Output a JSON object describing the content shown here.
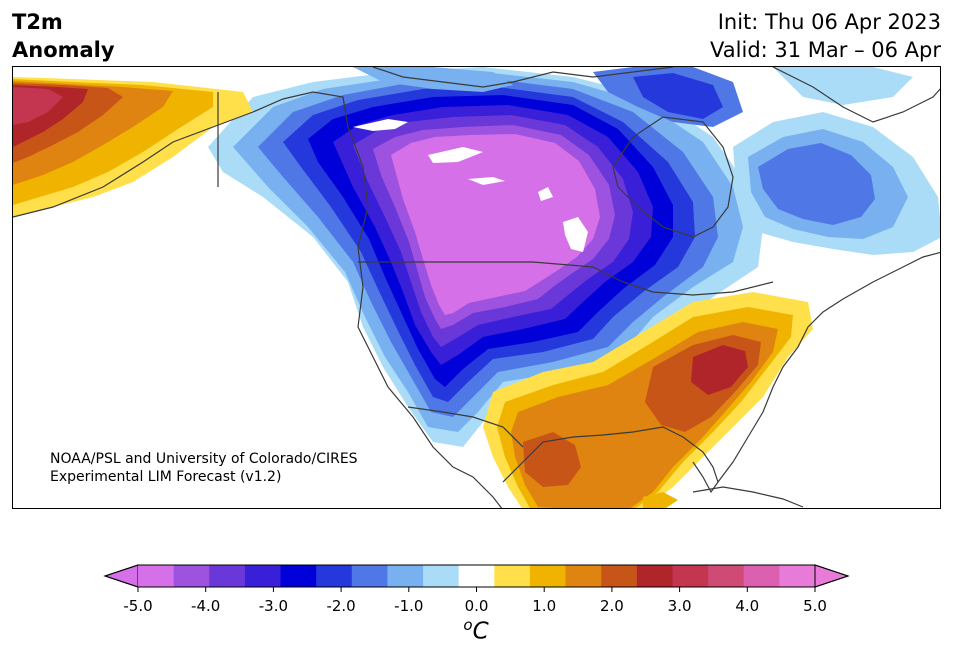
{
  "title": {
    "line1": "T2m",
    "line2": "Anomaly",
    "init": "Init: Thu 06 Apr 2023",
    "valid": "Valid: 31 Mar – 06 Apr"
  },
  "credit": {
    "line1": "NOAA/PSL and University of Colorado/CIRES",
    "line2": "Experimental LIM Forecast (v1.2)"
  },
  "colorbar": {
    "unit_main": "C",
    "unit_sup": "o",
    "ticks": [
      "-5.0",
      "-4.0",
      "-3.0",
      "-2.0",
      "-1.0",
      "0.0",
      "1.0",
      "2.0",
      "3.0",
      "4.0",
      "5.0"
    ],
    "levels": [
      -5.0,
      -4.5,
      -4.0,
      -3.5,
      -3.0,
      -2.5,
      -2.0,
      -1.5,
      -1.0,
      -0.5,
      0.5,
      1.0,
      1.5,
      2.0,
      2.5,
      3.0,
      3.5,
      4.0,
      4.5,
      5.0
    ],
    "colors": [
      "#d670e8",
      "#9e52e0",
      "#6a38d8",
      "#3a1fd8",
      "#0000d8",
      "#2538dc",
      "#4f78e6",
      "#78b0f0",
      "#aadcf8",
      "#ffffff",
      "#ffe04a",
      "#f0b400",
      "#df8410",
      "#c85518",
      "#b0252a",
      "#c43550",
      "#cf4a75",
      "#dc60b0",
      "#e87ad8"
    ],
    "extend_min_color": "#d670e8",
    "extend_max_color": "#e87ad8"
  }
}
